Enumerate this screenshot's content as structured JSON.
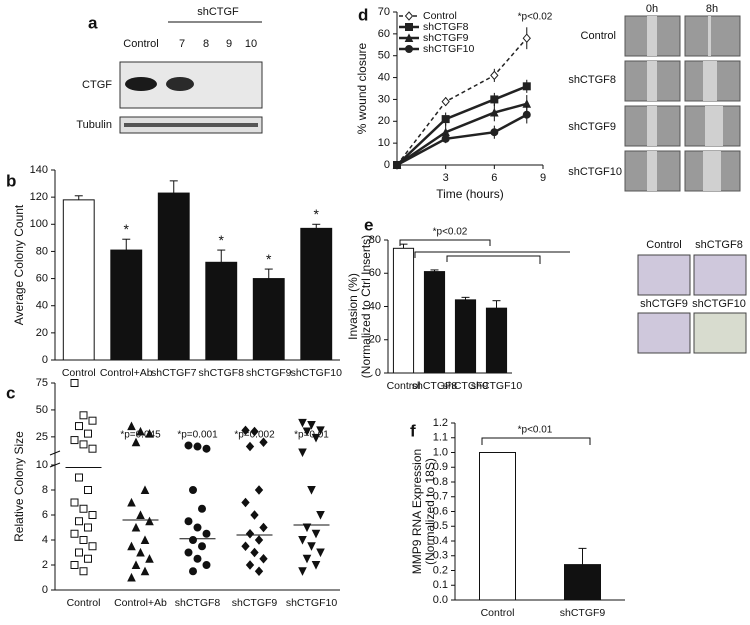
{
  "panels": [
    "a",
    "b",
    "c",
    "d",
    "e",
    "f"
  ],
  "blot": {
    "group_label": "shCTGF",
    "lanes": [
      "Control",
      "7",
      "8",
      "9",
      "10"
    ],
    "rows": [
      "CTGF",
      "Tubulin"
    ]
  },
  "wound_images": {
    "columns": [
      "0h",
      "8h"
    ],
    "rows": [
      "Control",
      "shCTGF8",
      "shCTGF9",
      "shCTGF10"
    ]
  },
  "invasion_images": {
    "labels": [
      "Control",
      "shCTGF8",
      "shCTGF9",
      "shCTGF10"
    ]
  },
  "chart_data": [
    {
      "type": "bar",
      "ylabel": [
        "Average Colony Count"
      ],
      "categories": [
        "Control",
        "Control+Ab",
        "shCTGF7",
        "shCTGF8",
        "shCTGF9",
        "shCTGF10"
      ],
      "values": [
        118,
        81,
        123,
        72,
        60,
        97
      ],
      "errors": [
        3,
        8,
        9,
        9,
        7,
        3
      ],
      "colors": [
        "#ffffff",
        "#111111",
        "#111111",
        "#111111",
        "#111111",
        "#111111"
      ],
      "significance": [
        null,
        "*",
        null,
        "*",
        "*",
        "*"
      ],
      "ylim": [
        0,
        140
      ],
      "yticks": [
        0,
        20,
        40,
        60,
        80,
        100,
        120,
        140
      ]
    },
    {
      "type": "strip",
      "ylabel": [
        "Relative Colony Size"
      ],
      "categories": [
        "Control",
        "Control+Ab",
        "shCTGF8",
        "shCTGF9",
        "shCTGF10"
      ],
      "series": [
        {
          "name": "Control",
          "marker": "square-open",
          "values": [
            75,
            45,
            40,
            35,
            28,
            22,
            18,
            14,
            9,
            8,
            7,
            6.5,
            6,
            5.5,
            5,
            4.5,
            4,
            3.5,
            3,
            2.5,
            2,
            1.5
          ]
        },
        {
          "name": "Control+Ab",
          "marker": "triangle",
          "values": [
            35,
            30,
            28,
            20,
            8,
            7,
            6,
            5.5,
            5,
            4,
            3.5,
            3,
            2.5,
            2,
            1.5,
            1
          ]
        },
        {
          "name": "shCTGF8",
          "marker": "circle",
          "values": [
            17,
            16,
            14,
            8,
            6.5,
            5.5,
            5,
            4.5,
            4,
            3.5,
            3,
            2.5,
            2,
            1.5
          ]
        },
        {
          "name": "shCTGF9",
          "marker": "diamond",
          "values": [
            31,
            30,
            20,
            16,
            8,
            7,
            6,
            5,
            4.5,
            4,
            3.5,
            3,
            2.5,
            2,
            1.5
          ]
        },
        {
          "name": "shCTGF10",
          "marker": "triangle-down",
          "values": [
            38,
            36,
            31,
            30,
            24,
            10.5,
            8,
            6,
            5,
            4.5,
            4,
            3.5,
            3,
            2.5,
            2,
            1.5
          ]
        }
      ],
      "means": [
        9.8,
        5.6,
        4.1,
        4.4,
        5.2
      ],
      "p_labels": [
        null,
        "*p=0.045",
        "*p=0.001",
        "*p=0.002",
        "*p=0.01"
      ],
      "ylim": [
        0,
        75
      ],
      "y_break": [
        10,
        25
      ],
      "yticks": [
        0,
        2,
        4,
        6,
        8,
        10,
        25,
        50,
        75
      ]
    },
    {
      "type": "line",
      "ylabel": [
        "% wound closure"
      ],
      "xlabel": "Time (hours)",
      "annotation": "*p<0.02",
      "x": [
        0,
        3,
        6,
        8
      ],
      "series": [
        {
          "name": "Control",
          "color": "#222222",
          "marker": "diamond-open",
          "dash": true,
          "values": [
            0,
            29,
            41,
            58
          ],
          "errors": [
            0,
            2,
            3,
            5
          ]
        },
        {
          "name": "shCTGF8",
          "color": "#222222",
          "marker": "square",
          "values": [
            0,
            21,
            30,
            36
          ],
          "errors": [
            0,
            3,
            3,
            3
          ]
        },
        {
          "name": "shCTGF9",
          "color": "#222222",
          "marker": "triangle",
          "values": [
            0,
            15,
            24,
            28
          ],
          "errors": [
            0,
            4,
            4,
            4
          ]
        },
        {
          "name": "shCTGF10",
          "color": "#222222",
          "marker": "circle",
          "values": [
            0,
            12,
            15,
            23
          ],
          "errors": [
            0,
            2,
            3,
            4
          ]
        }
      ],
      "xlim": [
        0,
        9
      ],
      "xticks": [
        3,
        6,
        9
      ],
      "ylim": [
        0,
        70
      ],
      "yticks": [
        0,
        10,
        20,
        30,
        40,
        50,
        60,
        70
      ]
    },
    {
      "type": "bar",
      "ylabel": [
        "Invasion (%)",
        "(Normalized to Ctrl Inserts)"
      ],
      "annotation": "*p<0.02",
      "categories": [
        "Control",
        "shCTGF8",
        "shCTGF9",
        "shCTGF10"
      ],
      "values": [
        75,
        61,
        44,
        39
      ],
      "errors": [
        2.5,
        1,
        1.5,
        4.5
      ],
      "colors": [
        "#ffffff",
        "#111111",
        "#111111",
        "#111111"
      ],
      "ylim": [
        0,
        80
      ],
      "yticks": [
        0,
        20,
        40,
        60,
        80
      ]
    },
    {
      "type": "bar",
      "ylabel": [
        "MMP9 RNA Expression",
        "(Normalized to 18S)"
      ],
      "annotation": "*p<0.01",
      "categories": [
        "Control",
        "shCTGF9"
      ],
      "values": [
        1.0,
        0.24
      ],
      "errors": [
        0,
        0.11
      ],
      "colors": [
        "#ffffff",
        "#111111"
      ],
      "ylim": [
        0,
        1.2
      ],
      "yticks": [
        {
          "value": 0,
          "label": "0.0"
        },
        0.1,
        0.2,
        0.3,
        0.4,
        0.5,
        0.6,
        0.7,
        0.8,
        0.9,
        {
          "value": 1,
          "label": "1.0"
        },
        1.1,
        1.2
      ]
    }
  ]
}
